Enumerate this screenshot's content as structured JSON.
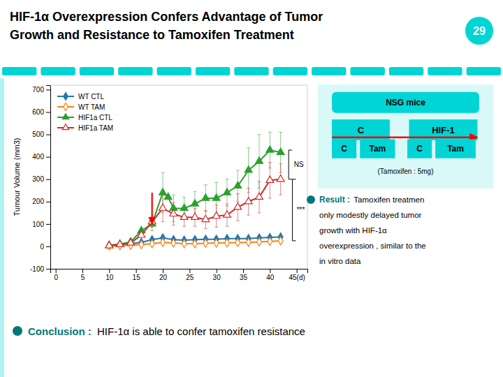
{
  "chart_data": {
    "type": "line",
    "title": [
      "HIF-1α Overexpression Confers Advantage of Tumor",
      "Growth and Resistance to Tamoxifen Treatment"
    ],
    "y_label": "Tumour Volume (mm3)",
    "xlim": [
      -1,
      47
    ],
    "ylim": [
      -100,
      720
    ],
    "xticks": [
      0,
      5,
      10,
      15,
      20,
      25,
      30,
      35,
      40,
      {
        "value": 45,
        "label": "45(d)"
      }
    ],
    "yticks": [
      -100,
      0,
      100,
      200,
      300,
      400,
      500,
      600,
      700
    ],
    "grid": false,
    "legend": "upper left",
    "series": [
      {
        "name": "WT CTL",
        "marker": "diamond",
        "x": [
          10,
          12,
          14,
          16,
          18,
          20,
          22,
          24,
          26,
          28,
          30,
          32,
          34,
          36,
          38,
          40,
          42
        ],
        "values": [
          5,
          8,
          12,
          18,
          30,
          38,
          30,
          28,
          30,
          32,
          32,
          35,
          35,
          35,
          38,
          40,
          42
        ],
        "errors": [
          null,
          null,
          null,
          null,
          10,
          12,
          10,
          10,
          10,
          10,
          10,
          null,
          null,
          null,
          null,
          null,
          null
        ]
      },
      {
        "name": "WT TAM",
        "marker": "diamond-open",
        "x": [
          10,
          12,
          14,
          16,
          18,
          20,
          22,
          24,
          26,
          28,
          30,
          32,
          34,
          36,
          38,
          40,
          42
        ],
        "values": [
          2,
          3,
          5,
          8,
          12,
          18,
          15,
          12,
          12,
          14,
          15,
          16,
          17,
          18,
          20,
          22,
          25
        ]
      },
      {
        "name": "HIF1a CTL",
        "marker": "triangle",
        "x": [
          10,
          12,
          14,
          16,
          18,
          20,
          21,
          22,
          24,
          26,
          28,
          30,
          32,
          34,
          36,
          38,
          40,
          42
        ],
        "values": [
          5,
          10,
          20,
          70,
          100,
          240,
          220,
          170,
          170,
          190,
          215,
          215,
          240,
          270,
          340,
          380,
          430,
          420
        ],
        "errors": [
          null,
          null,
          null,
          null,
          30,
          90,
          null,
          60,
          50,
          55,
          60,
          70,
          60,
          70,
          100,
          120,
          80,
          90
        ]
      },
      {
        "name": "HIF1a TAM",
        "marker": "triangle-open",
        "x": [
          10,
          12,
          14,
          16,
          18,
          20,
          22,
          24,
          26,
          28,
          30,
          32,
          34,
          36,
          38,
          40,
          42
        ],
        "values": [
          3,
          8,
          15,
          50,
          110,
          170,
          145,
          130,
          130,
          120,
          135,
          140,
          175,
          200,
          220,
          295,
          300
        ],
        "errors": [
          null,
          null,
          null,
          null,
          25,
          60,
          50,
          40,
          40,
          40,
          50,
          50,
          60,
          60,
          70,
          80,
          70
        ]
      }
    ],
    "annotations": {
      "chart": [
        {
          "x": 18,
          "y_from": 240,
          "y_to": 100,
          "color": "red"
        },
        {
          "text": "NS",
          "x": 44.5,
          "y": 365,
          "bracket_x": 43.5,
          "bracket": [
            300,
            430
          ]
        },
        {
          "text": "***",
          "x": 45.0,
          "y": 162,
          "bracket_x": 44.2,
          "bracket": [
            25,
            300
          ]
        }
      ],
      "slide_number": "29",
      "diagram": {
        "color": "#00d4d4",
        "arrow_color": "red",
        "header": "NSG mice",
        "groups": [
          "C",
          "HIF-1"
        ],
        "arms": [
          "C",
          "Tam",
          "C",
          "Tam"
        ],
        "note": "(Tamoxifen : 5mg)"
      },
      "result": {
        "label": "Result : ",
        "lines": [
          "Tamoxifen treatmen",
          "only modestly delayed tumor",
          "growth with HIF-1α",
          "overexpression , similar to the",
          "in vitro data"
        ]
      },
      "conclusion": {
        "label": "Conclusion : ",
        "text": "HIF-1α is able to confer tamoxifen resistance"
      }
    }
  }
}
